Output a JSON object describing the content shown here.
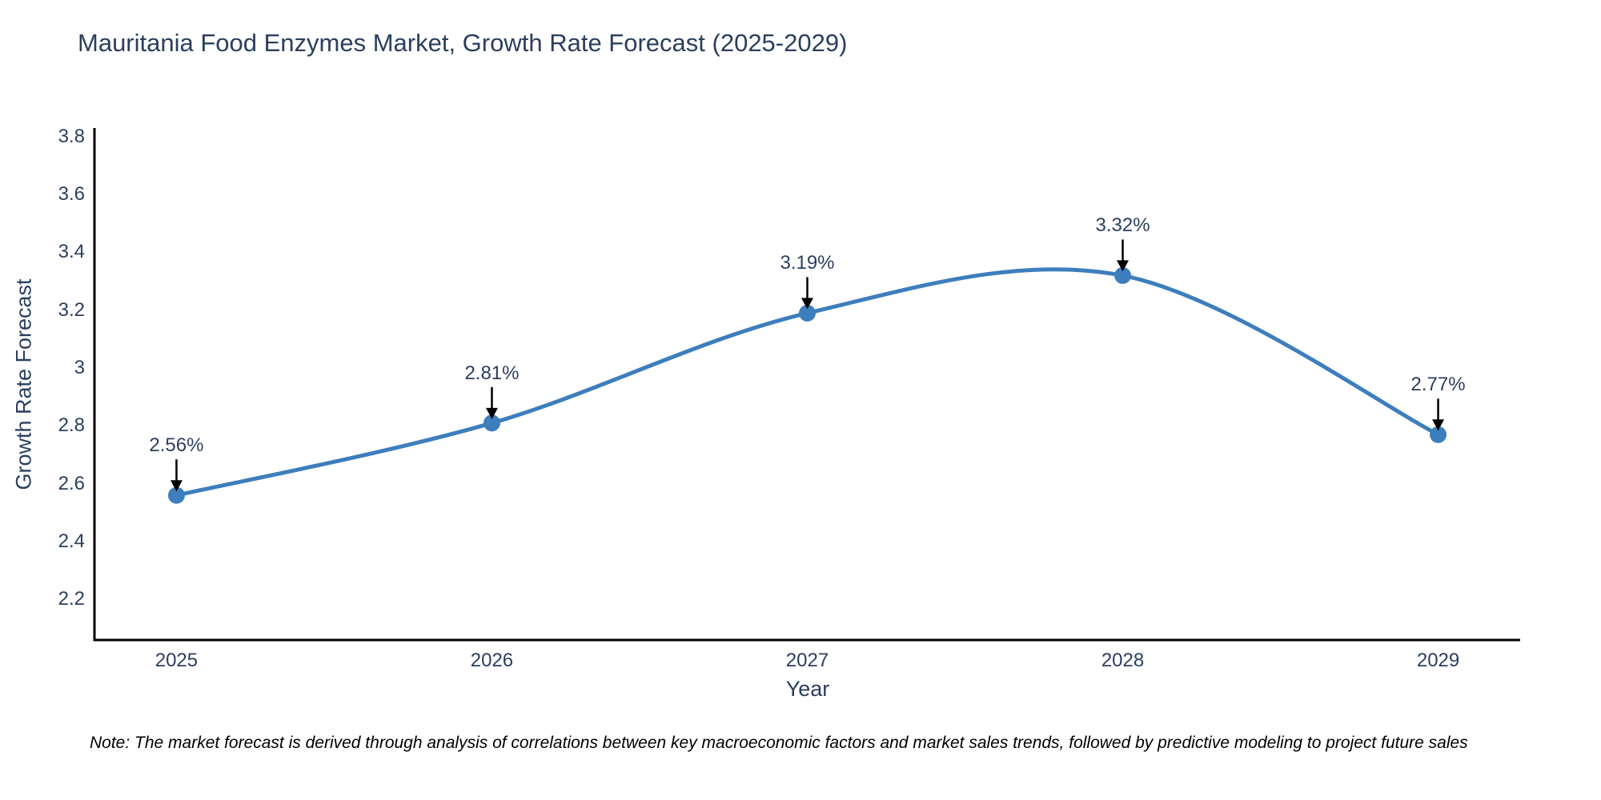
{
  "note": {
    "text": "Note: The market forecast is derived through analysis of correlations between key macroeconomic factors and market sales trends, followed by predictive modeling to project future sales"
  },
  "chart_data": {
    "type": "line",
    "line_shape": "spline",
    "title": "Mauritania Food Enzymes Market, Growth Rate Forecast (2025-2029)",
    "xlabel": "Year",
    "ylabel": "Growth Rate Forecast",
    "x": [
      2025,
      2026,
      2027,
      2028,
      2029
    ],
    "y": [
      2.56,
      2.81,
      3.19,
      3.32,
      2.77
    ],
    "point_labels": [
      "2.56%",
      "2.81%",
      "3.19%",
      "3.32%",
      "2.77%"
    ],
    "xtick_labels": [
      "2025",
      "2026",
      "2027",
      "2028",
      "2029"
    ],
    "ytick_values": [
      2.2,
      2.4,
      2.6,
      2.8,
      3,
      3.2,
      3.4,
      3.6,
      3.8
    ],
    "ytick_labels": [
      "2.2",
      "2.4",
      "2.6",
      "2.8",
      "3",
      "3.2",
      "3.4",
      "3.6",
      "3.8"
    ],
    "xlim": [
      2024.74,
      2029.26
    ],
    "ylim": [
      2.06,
      3.83
    ],
    "grid": false,
    "legend": false,
    "marker_size": 10.5,
    "line_width": 5,
    "colors": {
      "line": "#3d7ebd",
      "marker": "#3d7ebd",
      "axis_line": "#000000",
      "text": "#2a3f5f",
      "annotation_arrow": "#000000",
      "note_text": "#000000"
    }
  }
}
